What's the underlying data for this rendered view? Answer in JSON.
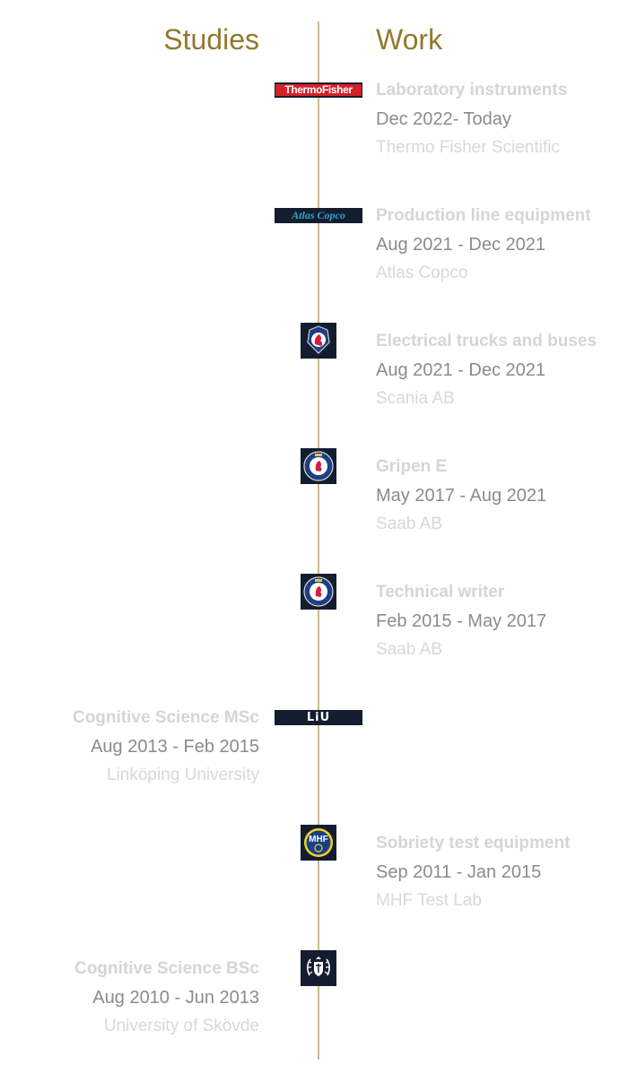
{
  "headings": {
    "studies": "Studies",
    "work": "Work"
  },
  "colors": {
    "accent": "#94782c",
    "axis": "#cbb98e",
    "logo_bg": "#141d2f",
    "muted_text": "#8b8b8b",
    "faint_text": "#d5d5d9"
  },
  "work": [
    {
      "title": "Laboratory instruments",
      "dates": "Dec 2022- Today",
      "org": "Thermo Fisher Scientific",
      "logo_text": "ThermoFisher",
      "logo_icon": "thermo-fisher-logo"
    },
    {
      "title": "Production line equipment",
      "dates": "Aug 2021 - Dec 2021",
      "org": "Atlas Copco",
      "logo_text": "Atlas Copco",
      "logo_icon": "atlas-copco-logo"
    },
    {
      "title": "Electrical trucks and buses",
      "dates": "Aug 2021 - Dec 2021",
      "org": "Scania AB",
      "logo_icon": "scania-griffin-logo"
    },
    {
      "title": "Gripen E",
      "dates": "May 2017 - Aug 2021",
      "org": "Saab AB",
      "logo_icon": "saab-roundel-logo"
    },
    {
      "title": "Technical writer",
      "dates": "Feb 2015 - May 2017",
      "org": "Saab AB",
      "logo_icon": "saab-roundel-logo"
    },
    {
      "title": "Sobriety test equipment",
      "dates": "Sep 2011 - Jan 2015",
      "org": "MHF Test Lab",
      "logo_text": "MHF",
      "logo_icon": "mhf-logo"
    }
  ],
  "studies": [
    {
      "title": "Cognitive Science MSc",
      "dates": "Aug 2013 - Feb 2015",
      "org": "Linköping University",
      "logo_text": "LiU",
      "logo_icon": "liu-logo"
    },
    {
      "title": "Cognitive Science BSc",
      "dates": "Aug 2010 - Jun 2013",
      "org": "University of Skövde",
      "logo_icon": "skovde-crest-logo"
    }
  ]
}
